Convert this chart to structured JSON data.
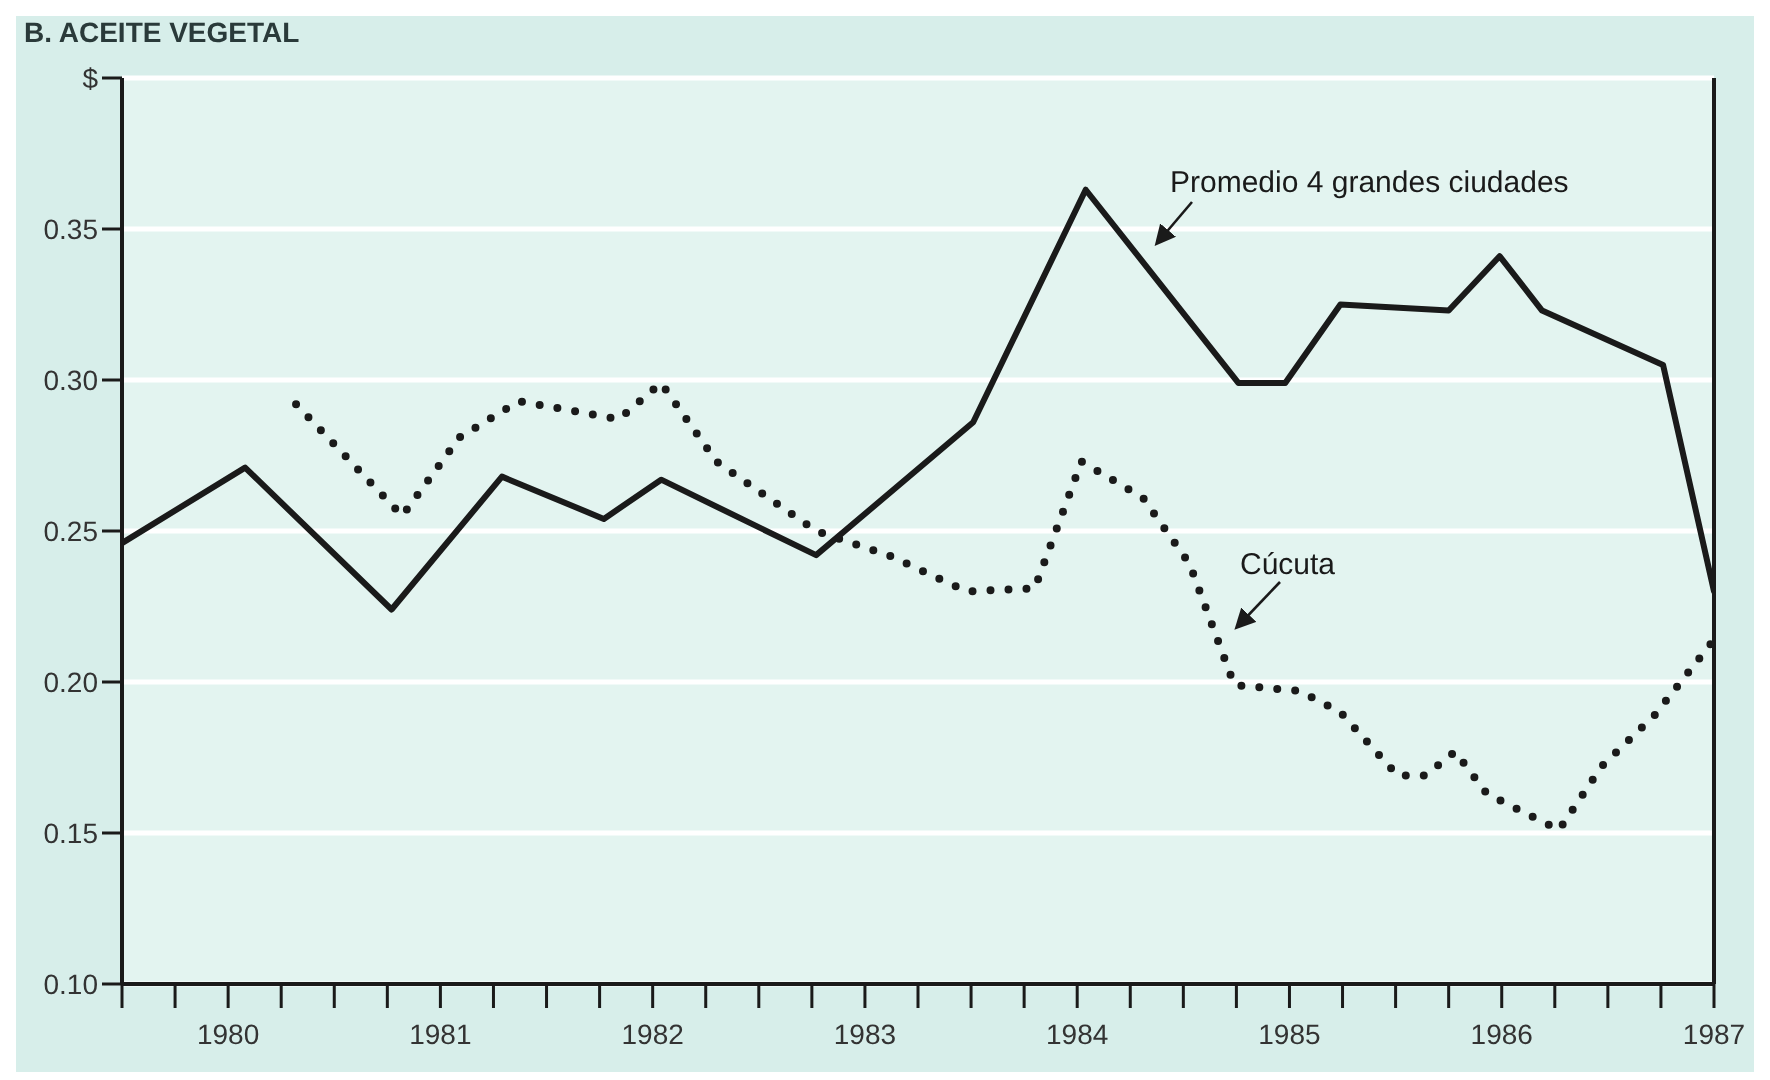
{
  "chart_data": {
    "type": "line",
    "title": "B. ACEITE VEGETAL",
    "xlim": [
      1980,
      1987.5
    ],
    "xticks": [
      {
        "value": 1980,
        "label": null
      },
      {
        "value": 1980.25,
        "label": null
      },
      {
        "value": 1980.5,
        "label": "1980"
      },
      {
        "value": 1980.75,
        "label": null
      },
      {
        "value": 1981,
        "label": null
      },
      {
        "value": 1981.25,
        "label": null
      },
      {
        "value": 1981.5,
        "label": "1981"
      },
      {
        "value": 1981.75,
        "label": null
      },
      {
        "value": 1982,
        "label": null
      },
      {
        "value": 1982.25,
        "label": null
      },
      {
        "value": 1982.5,
        "label": "1982"
      },
      {
        "value": 1982.75,
        "label": null
      },
      {
        "value": 1983,
        "label": null
      },
      {
        "value": 1983.25,
        "label": null
      },
      {
        "value": 1983.5,
        "label": "1983"
      },
      {
        "value": 1983.75,
        "label": null
      },
      {
        "value": 1984,
        "label": null
      },
      {
        "value": 1984.25,
        "label": null
      },
      {
        "value": 1984.5,
        "label": "1984"
      },
      {
        "value": 1984.75,
        "label": null
      },
      {
        "value": 1985,
        "label": null
      },
      {
        "value": 1985.25,
        "label": null
      },
      {
        "value": 1985.5,
        "label": "1985"
      },
      {
        "value": 1985.75,
        "label": null
      },
      {
        "value": 1986,
        "label": null
      },
      {
        "value": 1986.25,
        "label": null
      },
      {
        "value": 1986.5,
        "label": "1986"
      },
      {
        "value": 1986.75,
        "label": null
      },
      {
        "value": 1987,
        "label": null
      },
      {
        "value": 1987.25,
        "label": null
      },
      {
        "value": 1987.5,
        "label": "1987"
      }
    ],
    "ylim": [
      0.1,
      0.4
    ],
    "yticks": [
      {
        "value": 0.1,
        "label": "0.10"
      },
      0.15,
      {
        "value": 0.2,
        "label": "0.20"
      },
      0.25,
      {
        "value": 0.3,
        "label": "0.30"
      },
      0.35,
      {
        "value": 0.4,
        "label": "$"
      }
    ],
    "grid": "y",
    "marker": "none",
    "series": [
      {
        "name": "Promedio 4 grandes ciudades",
        "color": "#1a1a1a",
        "line_style": "solid",
        "x": [
          1980.0,
          1980.58,
          1981.27,
          1981.79,
          1982.27,
          1982.54,
          1983.27,
          1984.01,
          1984.54,
          1985.26,
          1985.48,
          1985.74,
          1986.25,
          1986.49,
          1986.69,
          1987.26,
          1987.5
        ],
        "values": [
          0.246,
          0.271,
          0.224,
          0.268,
          0.254,
          0.267,
          0.242,
          0.286,
          0.363,
          0.299,
          0.299,
          0.325,
          0.323,
          0.341,
          0.323,
          0.305,
          0.23
        ]
      },
      {
        "name": "Cúcuta",
        "color": "#1a1a1a",
        "line_style": "dotted",
        "x": [
          1980.82,
          1981.32,
          1981.59,
          1981.87,
          1982.34,
          1982.54,
          1982.8,
          1983.27,
          1983.61,
          1983.98,
          1984.3,
          1984.52,
          1984.81,
          1985.03,
          1985.24,
          1985.55,
          1985.74,
          1986.01,
          1986.14,
          1986.28,
          1986.43,
          1986.77,
          1986.97,
          1987.22,
          1987.5
        ],
        "values": [
          0.292,
          0.255,
          0.281,
          0.293,
          0.287,
          0.299,
          0.273,
          0.25,
          0.242,
          0.23,
          0.231,
          0.273,
          0.261,
          0.239,
          0.199,
          0.197,
          0.19,
          0.169,
          0.169,
          0.177,
          0.163,
          0.151,
          0.172,
          0.189,
          0.214
        ]
      }
    ]
  }
}
